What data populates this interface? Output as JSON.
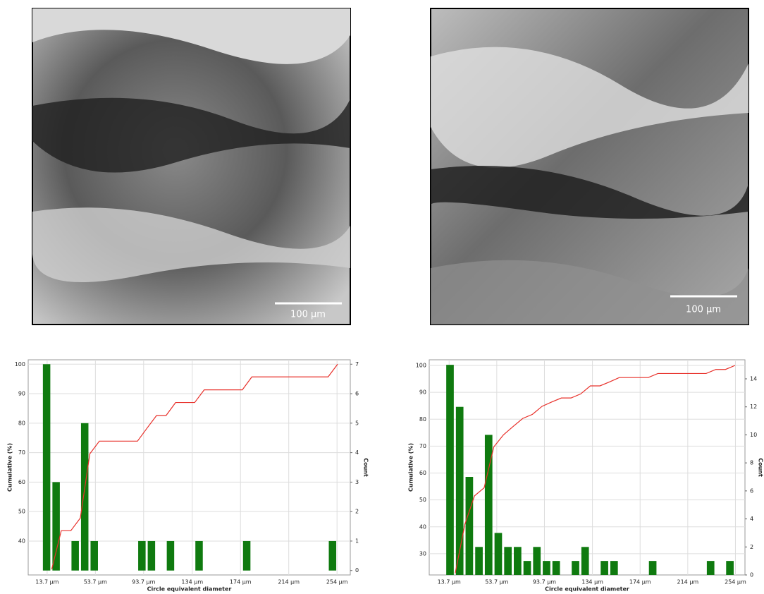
{
  "images": [
    {
      "scale_bar": "100 µm"
    },
    {
      "scale_bar": "100 µm"
    }
  ],
  "chart_data": [
    {
      "type": "histogram",
      "xlabel": "Circle equivalent diameter",
      "ylabel": "Cumulative (%)",
      "y2label": "Count",
      "bins": [
        9.6,
        17.5,
        25.4,
        33.3,
        41.2,
        49.1,
        57,
        64.9,
        72.8,
        80.7,
        88.6,
        96.5,
        104.4,
        112.3,
        120.2,
        128.1,
        136,
        143.9,
        151.8,
        159.7,
        167.6,
        175.5,
        183.4,
        191.3,
        199.2,
        207.1,
        215,
        222.9,
        230.8,
        238.7,
        246.6,
        254.5
      ],
      "values": [
        7,
        3,
        0,
        1,
        5,
        1,
        0,
        0,
        0,
        0,
        1,
        1,
        0,
        1,
        0,
        0,
        1,
        0,
        0,
        0,
        0,
        1,
        0,
        0,
        0,
        0,
        0,
        0,
        0,
        0,
        1
      ],
      "axis": "y2",
      "color": "#0f7a0f",
      "cumulative": {
        "color": "#e8302a",
        "x": [
          17.5,
          25.4,
          33.3,
          41.2,
          49.1,
          57,
          64.9,
          72.8,
          80.7,
          88.6,
          96.5,
          104.4,
          112.3,
          120.2,
          128.1,
          136,
          143.9,
          151.8,
          159.7,
          167.6,
          175.5,
          183.4,
          191.3,
          199.2,
          207.1,
          215,
          222.9,
          230.8,
          238.7,
          246.6,
          254.5
        ],
        "values": [
          30.4,
          43.5,
          43.5,
          47.8,
          69.6,
          73.9,
          73.9,
          73.9,
          73.9,
          73.9,
          78.3,
          82.6,
          82.6,
          87,
          87,
          87,
          91.3,
          91.3,
          91.3,
          91.3,
          91.3,
          95.7,
          95.7,
          95.7,
          95.7,
          95.7,
          95.7,
          95.7,
          95.7,
          95.7,
          100
        ]
      },
      "xlim": [
        -2,
        265
      ],
      "ylim": [
        28.5,
        101.5
      ],
      "y2lim": [
        -0.15,
        7.15
      ],
      "xticks": [
        {
          "value": 13.7,
          "label": "13.7 µm"
        },
        {
          "value": 53.7,
          "label": "53.7 µm"
        },
        {
          "value": 93.7,
          "label": "93.7 µm"
        },
        {
          "value": 134,
          "label": "134 µm"
        },
        {
          "value": 174,
          "label": "174 µm"
        },
        {
          "value": 214,
          "label": "214 µm"
        },
        {
          "value": 254,
          "label": "254 µm"
        }
      ],
      "yticks": [
        40,
        50,
        60,
        70,
        80,
        90,
        100
      ],
      "y2ticks": [
        0,
        1,
        2,
        3,
        4,
        5,
        6,
        7
      ],
      "grid": true
    },
    {
      "type": "histogram",
      "xlabel": "Circle equivalent diameter",
      "ylabel": "Cumulative (%)",
      "y2label": "Count",
      "bins": [
        10.7,
        18.8,
        26.9,
        35,
        43.1,
        51.2,
        59.3,
        67.4,
        75.5,
        83.6,
        91.7,
        99.8,
        107.9,
        116,
        124.1,
        132.2,
        140.3,
        148.4,
        156.5,
        164.6,
        172.7,
        180.8,
        188.9,
        197,
        205.1,
        213.2,
        221.3,
        229.4,
        237.5,
        245.6,
        253.7
      ],
      "values": [
        15,
        12,
        7,
        2,
        10,
        3,
        2,
        2,
        1,
        2,
        1,
        1,
        0,
        1,
        2,
        0,
        1,
        1,
        0,
        0,
        0,
        1,
        0,
        0,
        0,
        0,
        0,
        1,
        0,
        1
      ],
      "axis": "y2",
      "color": "#0f7a0f",
      "cumulative": {
        "color": "#e8302a",
        "x": [
          18.8,
          26.9,
          35,
          43.1,
          51.2,
          59.3,
          67.4,
          75.5,
          83.6,
          91.7,
          99.8,
          107.9,
          116,
          124.1,
          132.2,
          140.3,
          148.4,
          156.5,
          164.6,
          172.7,
          180.8,
          188.9,
          197,
          205.1,
          213.2,
          221.3,
          229.4,
          237.5,
          245.6,
          253.7
        ],
        "values": [
          22.7,
          40.9,
          51.5,
          54.5,
          69.7,
          74.2,
          77.3,
          80.3,
          81.8,
          84.8,
          86.4,
          87.9,
          87.9,
          89.4,
          92.4,
          92.4,
          93.9,
          95.5,
          95.5,
          95.5,
          95.5,
          97,
          97,
          97,
          97,
          97,
          97,
          98.5,
          98.5,
          100
        ]
      },
      "xlim": [
        -3,
        262
      ],
      "ylim": [
        22.1,
        102.1
      ],
      "y2lim": [
        0,
        15.36
      ],
      "xticks": [
        {
          "value": 13.7,
          "label": "13.7 µm"
        },
        {
          "value": 53.7,
          "label": "53.7 µm"
        },
        {
          "value": 93.7,
          "label": "93.7 µm"
        },
        {
          "value": 134,
          "label": "134 µm"
        },
        {
          "value": 174,
          "label": "174 µm"
        },
        {
          "value": 214,
          "label": "214 µm"
        },
        {
          "value": 254,
          "label": "254 µm"
        }
      ],
      "yticks": [
        30,
        40,
        50,
        60,
        70,
        80,
        90,
        100
      ],
      "y2ticks": [
        0,
        2,
        4,
        6,
        8,
        10,
        12,
        14
      ],
      "grid": true
    }
  ]
}
